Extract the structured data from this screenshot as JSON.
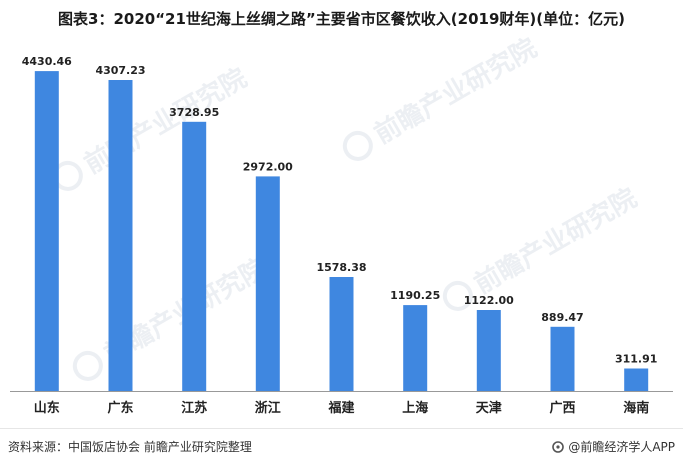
{
  "watermark_text": "前瞻产业研究院",
  "chart_data": {
    "type": "bar",
    "title": "图表3：2020“21世纪海上丝绸之路”主要省市区餐饮收入(2019财年)(单位：亿元)",
    "categories": [
      "山东",
      "广东",
      "江苏",
      "浙江",
      "福建",
      "上海",
      "天津",
      "广西",
      "海南"
    ],
    "values": [
      4430.46,
      4307.23,
      3728.95,
      2972.0,
      1578.38,
      1190.25,
      1122.0,
      889.47,
      311.91
    ],
    "value_labels": [
      "4430.46",
      "4307.23",
      "3728.95",
      "2972.00",
      "1578.38",
      "1190.25",
      "1122.00",
      "889.47",
      "311.91"
    ],
    "xlabel": "",
    "ylabel": "",
    "ylim": [
      0,
      5000
    ],
    "grid": false,
    "legend": "none",
    "bar_color": "#3f87e0"
  },
  "footer": {
    "source": "资料来源：中国饭店协会  前瞻产业研究院整理",
    "brand": "@前瞻经济学人APP"
  }
}
